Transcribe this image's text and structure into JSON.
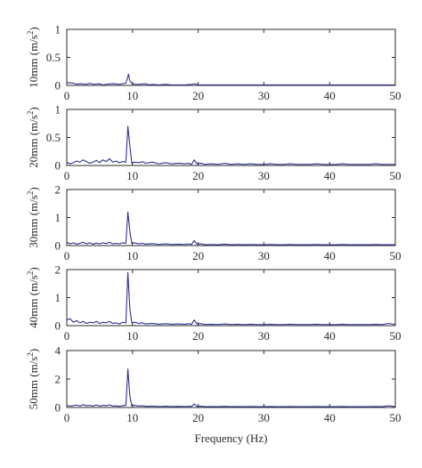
{
  "chart_data": [
    {
      "type": "line",
      "ylabel_prefix": "10mm (m/s",
      "ylabel_sup": "2",
      "ylabel_suffix": ")",
      "xlim": [
        0,
        50
      ],
      "ylim": [
        0,
        1
      ],
      "xticks": [
        0,
        10,
        20,
        30,
        40,
        50
      ],
      "yticks": [
        0,
        0.5,
        1
      ],
      "ytick_labels": [
        "0",
        "0.5",
        "1"
      ],
      "line_color": "#2e3192",
      "x": [
        0,
        1,
        1.5,
        2,
        3,
        3.5,
        4,
        5,
        5.5,
        6,
        7,
        8,
        8.5,
        9,
        9.4,
        9.6,
        10,
        10.5,
        11,
        12,
        12.5,
        13,
        14,
        15,
        16,
        17,
        18,
        19,
        19.5,
        20,
        21,
        22,
        23,
        24,
        25,
        26,
        27,
        28,
        29,
        30,
        31,
        32,
        33,
        34,
        35,
        36,
        37,
        38,
        39,
        40,
        41,
        42,
        43,
        44,
        45,
        46,
        47,
        48,
        49,
        50
      ],
      "y": [
        0.05,
        0.04,
        0.02,
        0.03,
        0.02,
        0.04,
        0.02,
        0.03,
        0.01,
        0.02,
        0.03,
        0.02,
        0.03,
        0.04,
        0.2,
        0.08,
        0.03,
        0.02,
        0.02,
        0.03,
        0.01,
        0.02,
        0.01,
        0.02,
        0.01,
        0.01,
        0.01,
        0.02,
        0.03,
        0.01,
        0.01,
        0.01,
        0.01,
        0.01,
        0.01,
        0.01,
        0.01,
        0.01,
        0.01,
        0.01,
        0.01,
        0.01,
        0.01,
        0.01,
        0.01,
        0.01,
        0.01,
        0.01,
        0.01,
        0.01,
        0.01,
        0.01,
        0.01,
        0.01,
        0.01,
        0.01,
        0.01,
        0.01,
        0.01,
        0.01
      ]
    },
    {
      "type": "line",
      "ylabel_prefix": "20mm (m/s",
      "ylabel_sup": "2",
      "ylabel_suffix": ")",
      "xlim": [
        0,
        50
      ],
      "ylim": [
        0,
        1
      ],
      "xticks": [
        0,
        10,
        20,
        30,
        40,
        50
      ],
      "yticks": [
        0,
        0.5,
        1
      ],
      "ytick_labels": [
        "0",
        "0.5",
        "1"
      ],
      "line_color": "#2e3192",
      "x": [
        0,
        0.5,
        1,
        1.5,
        2,
        2.5,
        3,
        3.5,
        4,
        4.5,
        5,
        5.5,
        6,
        6.5,
        7,
        7.5,
        8,
        8.5,
        9,
        9.3,
        9.6,
        9.9,
        10.3,
        11,
        11.5,
        12,
        13,
        14,
        15,
        16,
        17,
        18,
        18.5,
        19,
        19.4,
        19.8,
        20.5,
        21,
        22,
        23,
        24,
        25,
        26,
        27,
        28,
        29,
        30,
        31,
        32,
        33,
        34,
        35,
        36,
        37,
        38,
        39,
        40,
        41,
        42,
        43,
        44,
        45,
        46,
        47,
        48,
        49,
        50
      ],
      "y": [
        0.06,
        0.03,
        0.05,
        0.08,
        0.06,
        0.1,
        0.07,
        0.04,
        0.06,
        0.09,
        0.05,
        0.1,
        0.07,
        0.12,
        0.06,
        0.08,
        0.05,
        0.07,
        0.06,
        0.7,
        0.35,
        0.04,
        0.06,
        0.05,
        0.07,
        0.04,
        0.06,
        0.03,
        0.05,
        0.03,
        0.04,
        0.03,
        0.04,
        0.02,
        0.1,
        0.03,
        0.04,
        0.02,
        0.03,
        0.02,
        0.04,
        0.02,
        0.03,
        0.02,
        0.03,
        0.02,
        0.02,
        0.03,
        0.02,
        0.02,
        0.03,
        0.02,
        0.02,
        0.02,
        0.03,
        0.02,
        0.02,
        0.02,
        0.03,
        0.02,
        0.02,
        0.02,
        0.02,
        0.03,
        0.02,
        0.02,
        0.02
      ]
    },
    {
      "type": "line",
      "ylabel_prefix": "30mm (m/s",
      "ylabel_sup": "2",
      "ylabel_suffix": ")",
      "xlim": [
        0,
        50
      ],
      "ylim": [
        0,
        2
      ],
      "xticks": [
        0,
        10,
        20,
        30,
        40,
        50
      ],
      "yticks": [
        0,
        1,
        2
      ],
      "ytick_labels": [
        "0",
        "1",
        "2"
      ],
      "line_color": "#2e3192",
      "x": [
        0,
        0.5,
        1,
        1.5,
        2,
        2.5,
        3,
        3.5,
        4,
        4.5,
        5,
        5.5,
        6,
        6.5,
        7,
        7.5,
        8,
        8.5,
        9,
        9.3,
        9.6,
        9.9,
        10.3,
        11,
        11.5,
        12,
        13,
        14,
        15,
        16,
        17,
        18,
        18.5,
        19,
        19.4,
        19.8,
        20.5,
        21,
        22,
        23,
        24,
        25,
        26,
        27,
        28,
        29,
        30,
        31,
        32,
        33,
        34,
        35,
        36,
        37,
        38,
        39,
        40,
        41,
        42,
        43,
        44,
        45,
        46,
        47,
        48,
        49,
        50
      ],
      "y": [
        0.12,
        0.06,
        0.1,
        0.05,
        0.08,
        0.12,
        0.06,
        0.1,
        0.05,
        0.09,
        0.06,
        0.1,
        0.07,
        0.12,
        0.06,
        0.08,
        0.06,
        0.1,
        0.08,
        1.2,
        0.5,
        0.08,
        0.1,
        0.06,
        0.08,
        0.05,
        0.07,
        0.04,
        0.06,
        0.04,
        0.05,
        0.04,
        0.06,
        0.04,
        0.18,
        0.05,
        0.06,
        0.03,
        0.04,
        0.03,
        0.05,
        0.03,
        0.04,
        0.03,
        0.04,
        0.03,
        0.03,
        0.04,
        0.03,
        0.03,
        0.04,
        0.03,
        0.03,
        0.03,
        0.04,
        0.03,
        0.03,
        0.03,
        0.04,
        0.03,
        0.03,
        0.03,
        0.03,
        0.04,
        0.03,
        0.03,
        0.03
      ]
    },
    {
      "type": "line",
      "ylabel_prefix": "40mm (m/s",
      "ylabel_sup": "2",
      "ylabel_suffix": ")",
      "xlim": [
        0,
        50
      ],
      "ylim": [
        0,
        2
      ],
      "xticks": [
        0,
        10,
        20,
        30,
        40,
        50
      ],
      "yticks": [
        0,
        1,
        2
      ],
      "ytick_labels": [
        "0",
        "1",
        "2"
      ],
      "line_color": "#2e3192",
      "x": [
        0,
        0.5,
        1,
        1.5,
        2,
        2.5,
        3,
        3.5,
        4,
        4.5,
        5,
        5.5,
        6,
        6.5,
        7,
        7.5,
        8,
        8.5,
        9,
        9.3,
        9.6,
        9.9,
        10.3,
        11,
        11.5,
        12,
        13,
        14,
        15,
        16,
        17,
        18,
        18.5,
        19,
        19.4,
        19.8,
        20.5,
        21,
        22,
        23,
        24,
        25,
        26,
        27,
        28,
        29,
        30,
        31,
        32,
        33,
        34,
        35,
        36,
        37,
        38,
        39,
        40,
        41,
        42,
        43,
        44,
        45,
        46,
        47,
        48,
        49,
        50
      ],
      "y": [
        0.2,
        0.25,
        0.12,
        0.18,
        0.1,
        0.15,
        0.08,
        0.12,
        0.1,
        0.15,
        0.08,
        0.12,
        0.1,
        0.15,
        0.08,
        0.1,
        0.06,
        0.12,
        0.1,
        1.9,
        0.6,
        0.1,
        0.12,
        0.08,
        0.1,
        0.06,
        0.08,
        0.05,
        0.07,
        0.05,
        0.06,
        0.05,
        0.07,
        0.05,
        0.2,
        0.06,
        0.07,
        0.04,
        0.05,
        0.04,
        0.06,
        0.04,
        0.05,
        0.04,
        0.05,
        0.04,
        0.04,
        0.05,
        0.04,
        0.04,
        0.05,
        0.04,
        0.04,
        0.04,
        0.05,
        0.04,
        0.04,
        0.04,
        0.05,
        0.04,
        0.04,
        0.04,
        0.04,
        0.05,
        0.04,
        0.08,
        0.04
      ]
    },
    {
      "type": "line",
      "ylabel_prefix": "50mm (m/s",
      "ylabel_sup": "2",
      "ylabel_suffix": ")",
      "xlabel": "Frequency (Hz)",
      "xlim": [
        0,
        50
      ],
      "ylim": [
        0,
        4
      ],
      "xticks": [
        0,
        10,
        20,
        30,
        40,
        50
      ],
      "yticks": [
        0,
        2,
        4
      ],
      "ytick_labels": [
        "0",
        "2",
        "4"
      ],
      "line_color": "#2e3192",
      "x": [
        0,
        0.5,
        1,
        1.5,
        2,
        2.5,
        3,
        3.5,
        4,
        4.5,
        5,
        5.5,
        6,
        6.5,
        7,
        7.5,
        8,
        8.5,
        9,
        9.3,
        9.6,
        9.9,
        10.3,
        11,
        11.5,
        12,
        13,
        14,
        15,
        16,
        17,
        18,
        18.5,
        19,
        19.4,
        19.8,
        20.5,
        21,
        22,
        23,
        24,
        25,
        26,
        27,
        28,
        29,
        30,
        31,
        32,
        33,
        34,
        35,
        36,
        37,
        38,
        39,
        40,
        41,
        42,
        43,
        44,
        45,
        46,
        47,
        48,
        49,
        50
      ],
      "y": [
        0.15,
        0.1,
        0.12,
        0.18,
        0.1,
        0.2,
        0.12,
        0.15,
        0.1,
        0.18,
        0.1,
        0.15,
        0.12,
        0.18,
        0.1,
        0.12,
        0.08,
        0.12,
        0.15,
        2.7,
        0.8,
        0.12,
        0.15,
        0.1,
        0.12,
        0.08,
        0.1,
        0.07,
        0.09,
        0.07,
        0.08,
        0.07,
        0.09,
        0.07,
        0.25,
        0.08,
        0.09,
        0.06,
        0.07,
        0.06,
        0.08,
        0.06,
        0.07,
        0.06,
        0.07,
        0.06,
        0.06,
        0.07,
        0.06,
        0.06,
        0.07,
        0.06,
        0.06,
        0.06,
        0.07,
        0.06,
        0.06,
        0.06,
        0.07,
        0.06,
        0.06,
        0.06,
        0.06,
        0.07,
        0.06,
        0.12,
        0.06
      ]
    }
  ]
}
